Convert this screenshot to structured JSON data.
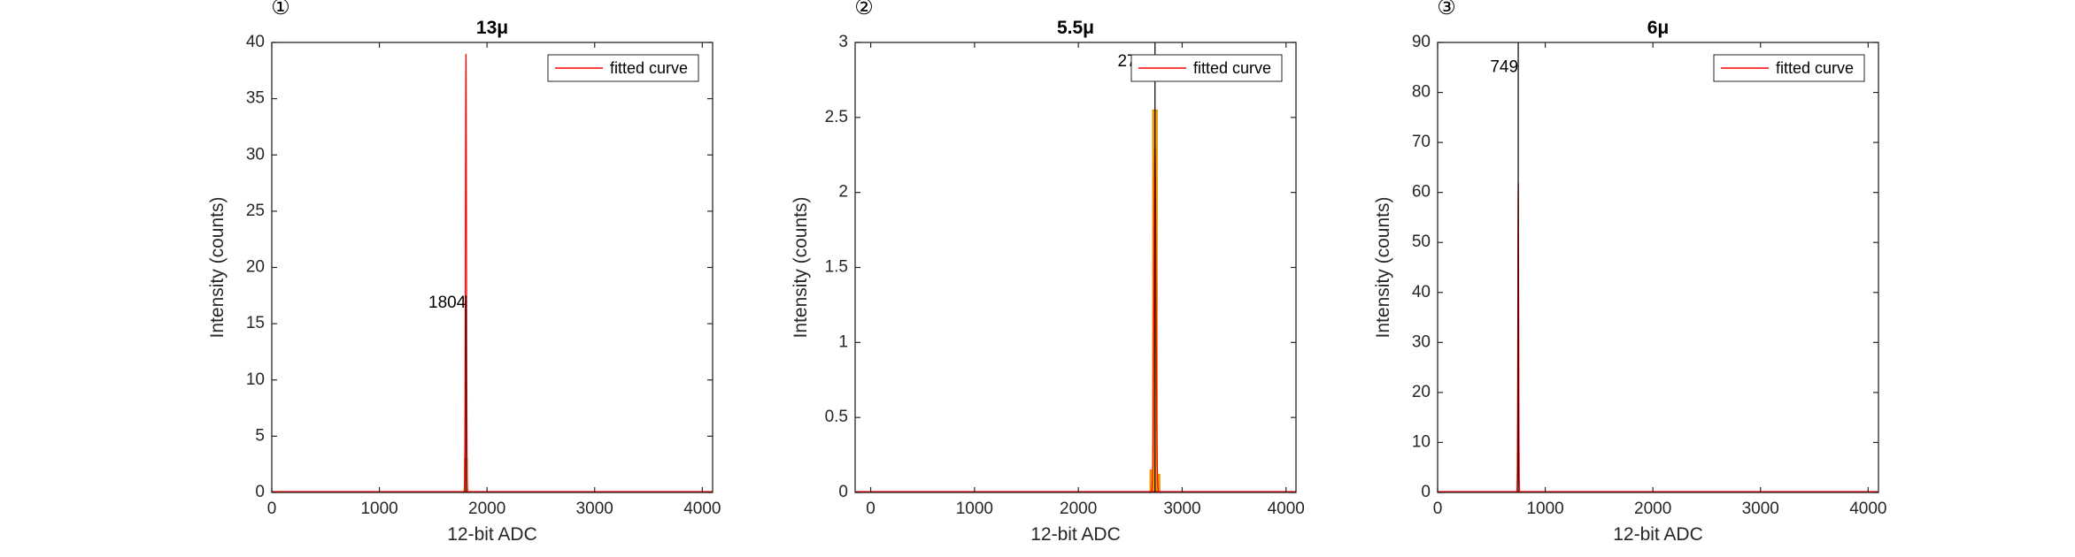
{
  "colors": {
    "axis": "#262626",
    "fit": "#ff0000",
    "hist": "#f4a000",
    "histEdge": "#e08a00",
    "marker": "#000000"
  },
  "chart_data": [
    {
      "type": "bar",
      "panel_marker": "①",
      "title": "13μ",
      "xlabel": "12-bit ADC",
      "ylabel": "Intensity (counts)",
      "xlim": [
        0,
        4096
      ],
      "ylim": [
        0,
        40
      ],
      "xticks": [
        0,
        1000,
        2000,
        3000,
        4000
      ],
      "yticks": [
        0,
        5,
        10,
        15,
        20,
        25,
        30,
        35,
        40
      ],
      "grid": false,
      "legend": {
        "entries": [
          "fitted curve"
        ],
        "position": "top-right"
      },
      "histogram": {
        "bins": [
          [
            1790,
            1818,
            3
          ]
        ]
      },
      "fit": {
        "mean": 1804,
        "sigma": 5,
        "peak": 39
      },
      "peak_marker": {
        "x": 1804,
        "y_top": 17.5,
        "label": "1804",
        "label_y": 16.8
      }
    },
    {
      "type": "bar",
      "panel_marker": "②",
      "title": "5.5μ",
      "xlabel": "12-bit ADC",
      "ylabel": "Intensity (counts)",
      "xlim": [
        -150,
        4096
      ],
      "ylim": [
        0,
        3
      ],
      "xticks": [
        0,
        1000,
        2000,
        3000,
        4000
      ],
      "yticks": [
        0,
        0.5,
        1,
        1.5,
        2,
        2.5,
        3
      ],
      "grid": false,
      "legend": {
        "entries": [
          "fitted curve"
        ],
        "position": "top-right"
      },
      "histogram": {
        "bins": [
          [
            2690,
            2715,
            0.15
          ],
          [
            2715,
            2760,
            2.55
          ],
          [
            2760,
            2785,
            0.12
          ]
        ]
      },
      "fit": {
        "mean": 2738,
        "sigma": 10,
        "peak": 2.3
      },
      "peak_marker": {
        "x": 2738,
        "y_top": 3,
        "label": "2738",
        "label_y": 2.87
      }
    },
    {
      "type": "bar",
      "panel_marker": "③",
      "title": "6μ",
      "xlabel": "12-bit ADC",
      "ylabel": "Intensity (counts)",
      "xlim": [
        0,
        4096
      ],
      "ylim": [
        0,
        90
      ],
      "xticks": [
        0,
        1000,
        2000,
        3000,
        4000
      ],
      "yticks": [
        0,
        10,
        20,
        30,
        40,
        50,
        60,
        70,
        80,
        90
      ],
      "grid": false,
      "legend": {
        "entries": [
          "fitted curve"
        ],
        "position": "top-right"
      },
      "histogram": {
        "bins": []
      },
      "fit": {
        "mean": 749,
        "sigma": 4,
        "peak": 62
      },
      "peak_marker": {
        "x": 749,
        "y_top": 90,
        "label": "749",
        "label_y": 85
      }
    }
  ]
}
